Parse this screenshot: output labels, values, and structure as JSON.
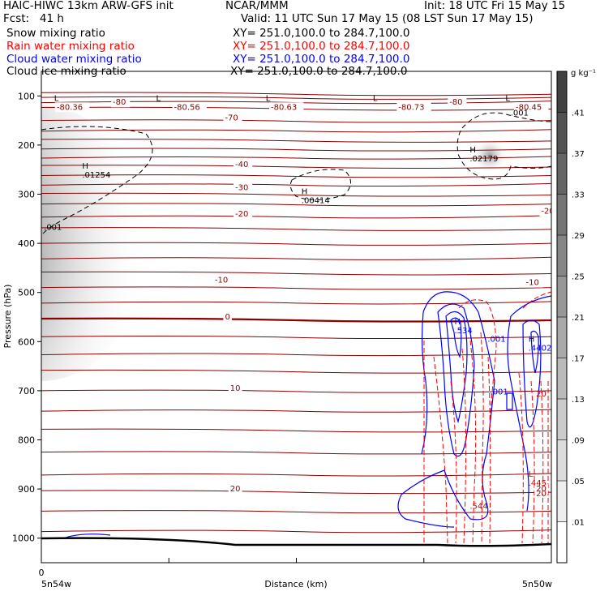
{
  "header": {
    "line1_left": "HAIC-HIWC 13km ARW-GFS init",
    "line1_mid": "NCAR/MMM",
    "line1_right": "Init: 18 UTC Fri 15 May 15",
    "fcst": "Fcst:   41 h",
    "valid": "Valid: 11 UTC Sun 17 May 15 (08 LST Sun 17 May 15)",
    "fields": [
      {
        "name": "Snow mixing ratio",
        "xy": "XY= 251.0,100.0 to 284.7,100.0",
        "color": "#000000"
      },
      {
        "name": "Rain water mixing ratio",
        "xy": "XY= 251.0,100.0 to 284.7,100.0",
        "color": "#ff0000"
      },
      {
        "name": "Cloud water mixing ratio",
        "xy": "XY= 251.0,100.0 to 284.7,100.0",
        "color": "#0000ff"
      },
      {
        "name": "Cloud ice mixing ratio",
        "xy": "XY= 251.0,100.0 to 284.7,100.0",
        "color": "#000000"
      }
    ]
  },
  "chart_data": {
    "type": "cross-section",
    "xlabel": "Distance (km)",
    "ylabel": "Pressure (hPa)",
    "x_start_label": "0",
    "x_left_label": "5n54w",
    "x_right_label": "5n50w",
    "y_ticks": [
      100,
      200,
      300,
      400,
      500,
      600,
      700,
      800,
      900,
      1000
    ],
    "ylim": [
      1050,
      50
    ],
    "colorbar": {
      "unit": "g kg⁻¹",
      "ticks": [
        ".01",
        ".05",
        ".09",
        ".13",
        ".17",
        ".21",
        ".25",
        ".29",
        ".33",
        ".37",
        ".41"
      ]
    },
    "temperature_labels": [
      {
        "text": "-80.36",
        "x": 0.03,
        "p": 128
      },
      {
        "text": "-80",
        "x": 0.14,
        "p": 118
      },
      {
        "text": "-80.56",
        "x": 0.26,
        "p": 128
      },
      {
        "text": "-80.63",
        "x": 0.45,
        "p": 128
      },
      {
        "text": "-80.73",
        "x": 0.7,
        "p": 128
      },
      {
        "text": "-80",
        "x": 0.8,
        "p": 118
      },
      {
        "text": "-80.45",
        "x": 0.93,
        "p": 128
      },
      {
        "text": "-70",
        "x": 0.36,
        "p": 150
      },
      {
        "text": "-40",
        "x": 0.38,
        "p": 245
      },
      {
        "text": "-30",
        "x": 0.38,
        "p": 292
      },
      {
        "text": "-20",
        "x": 0.38,
        "p": 345
      },
      {
        "text": "-20",
        "x": 0.98,
        "p": 340
      },
      {
        "text": "-10",
        "x": 0.34,
        "p": 480
      },
      {
        "text": "-10",
        "x": 0.95,
        "p": 485
      },
      {
        "text": "0",
        "x": 0.36,
        "p": 555
      },
      {
        "text": "10",
        "x": 0.37,
        "p": 700
      },
      {
        "text": "20",
        "x": 0.37,
        "p": 905
      },
      {
        "text": "20",
        "x": 0.97,
        "p": 905
      }
    ],
    "hl_labels": [
      {
        "mark": "L",
        "x": 0.025,
        "p": 110
      },
      {
        "mark": "L",
        "x": 0.225,
        "p": 110
      },
      {
        "mark": "L",
        "x": 0.44,
        "p": 110
      },
      {
        "mark": "L",
        "x": 0.65,
        "p": 110
      },
      {
        "mark": "L",
        "x": 0.91,
        "p": 110
      },
      {
        "mark": "H",
        "x": 0.08,
        "p": 248,
        "value": ".01254"
      },
      {
        "mark": "H",
        "x": 0.51,
        "p": 300,
        "value": ".00414"
      },
      {
        "mark": "H",
        "x": 0.84,
        "p": 215,
        "value": ".02179"
      },
      {
        "mark": "",
        "x": 0.92,
        "p": 140,
        "value": ".001"
      },
      {
        "mark": "",
        "x": 0.005,
        "p": 373,
        "value": ".001"
      },
      {
        "mark": "H",
        "x": 0.81,
        "p": 565,
        "value": ".534"
      },
      {
        "mark": "",
        "x": 0.875,
        "p": 600,
        "value": ".001"
      },
      {
        "mark": "H",
        "x": 0.955,
        "p": 600,
        "value": ".4402"
      },
      {
        "mark": "",
        "x": 0.88,
        "p": 708,
        "value": ".001"
      },
      {
        "mark": "",
        "x": 0.97,
        "p": 712,
        "value": "20"
      },
      {
        "mark": "L",
        "x": 0.955,
        "p": 875,
        "value": ".445"
      },
      {
        "mark": "",
        "x": 0.97,
        "p": 915,
        "value": "20"
      },
      {
        "mark": "",
        "x": 0.84,
        "p": 940,
        "value": ".544"
      }
    ]
  }
}
